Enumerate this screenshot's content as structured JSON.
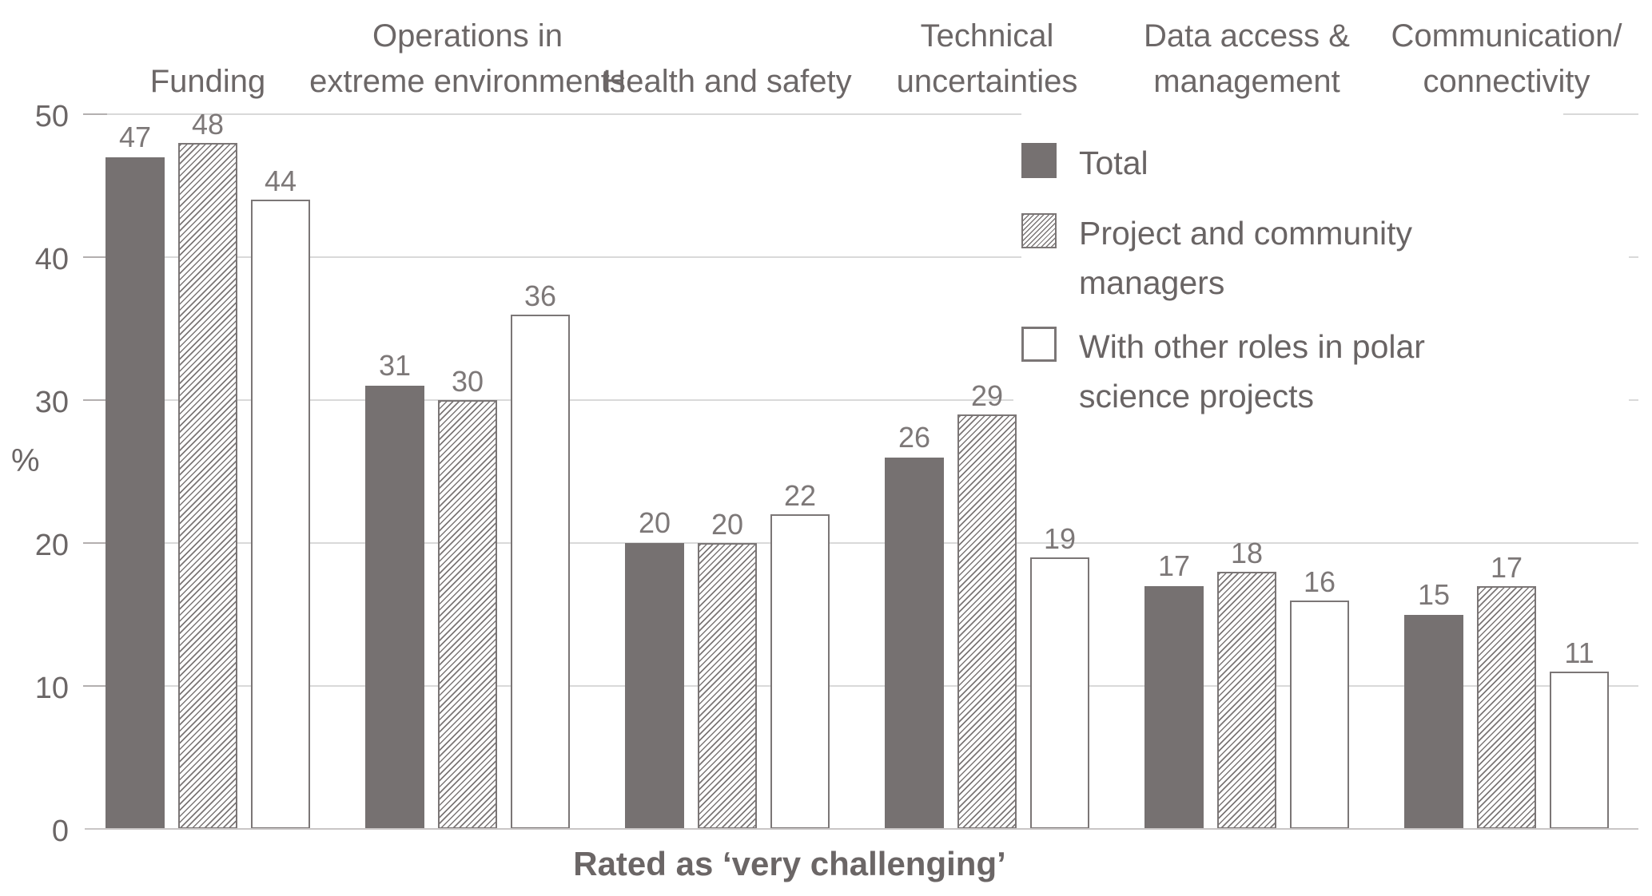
{
  "chart_data": {
    "type": "bar",
    "title": "",
    "xlabel": "Rated as ‘very challenging’",
    "ylabel": "%",
    "ylim": [
      0,
      50
    ],
    "yticks": [
      0,
      10,
      20,
      30,
      40,
      50
    ],
    "grid": true,
    "legend_position": "upper-right",
    "categories": [
      "Funding",
      "Operations in\nextreme environments",
      "Health and safety",
      "Technical\nuncertainties",
      "Data access &\nmanagement",
      "Communication/\nconnectivity"
    ],
    "series": [
      {
        "name": "Total",
        "pattern": "solid",
        "values": [
          47,
          31,
          20,
          26,
          17,
          15
        ]
      },
      {
        "name": "Project and community managers",
        "pattern": "hatched",
        "values": [
          48,
          30,
          20,
          29,
          18,
          17
        ]
      },
      {
        "name": "With other roles in polar science projects",
        "pattern": "outline",
        "values": [
          44,
          36,
          22,
          19,
          16,
          11
        ]
      }
    ]
  },
  "colors": {
    "bar_solid": "#767171",
    "hatch_line": "#7b7676",
    "gridline": "#d9d9d9",
    "text": "#6b6666"
  }
}
